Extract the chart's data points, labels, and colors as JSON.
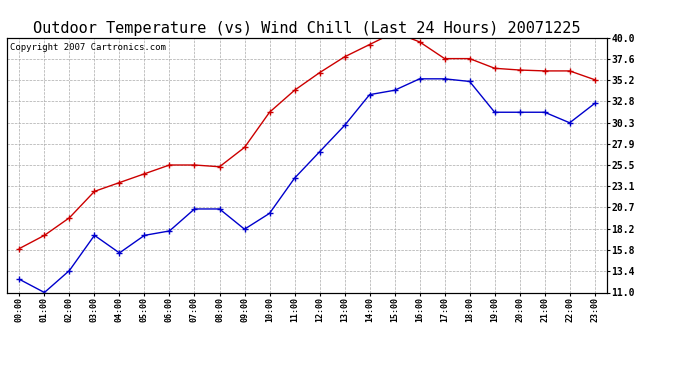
{
  "title": "Outdoor Temperature (vs) Wind Chill (Last 24 Hours) 20071225",
  "copyright": "Copyright 2007 Cartronics.com",
  "hours": [
    "00:00",
    "01:00",
    "02:00",
    "03:00",
    "04:00",
    "05:00",
    "06:00",
    "07:00",
    "08:00",
    "09:00",
    "10:00",
    "11:00",
    "12:00",
    "13:00",
    "14:00",
    "15:00",
    "16:00",
    "17:00",
    "18:00",
    "19:00",
    "20:00",
    "21:00",
    "22:00",
    "23:00"
  ],
  "temp": [
    16.0,
    17.5,
    19.5,
    22.5,
    23.5,
    24.5,
    25.5,
    25.5,
    25.3,
    27.5,
    31.5,
    34.0,
    36.0,
    37.8,
    39.2,
    40.6,
    39.5,
    37.6,
    37.6,
    36.5,
    36.3,
    36.2,
    36.2,
    35.2
  ],
  "windchill": [
    12.5,
    11.0,
    13.5,
    17.5,
    15.5,
    17.5,
    18.0,
    20.5,
    20.5,
    18.2,
    20.0,
    24.0,
    27.0,
    30.0,
    33.5,
    34.0,
    35.3,
    35.3,
    35.0,
    31.5,
    31.5,
    31.5,
    30.3,
    32.5
  ],
  "temp_color": "#cc0000",
  "windchill_color": "#0000cc",
  "yticks_right": [
    11.0,
    13.4,
    15.8,
    18.2,
    20.7,
    23.1,
    25.5,
    27.9,
    30.3,
    32.8,
    35.2,
    37.6,
    40.0
  ],
  "bg_color": "#ffffff",
  "plot_bg_color": "#ffffff",
  "grid_color": "#aaaaaa",
  "title_fontsize": 11,
  "copyright_fontsize": 6.5
}
